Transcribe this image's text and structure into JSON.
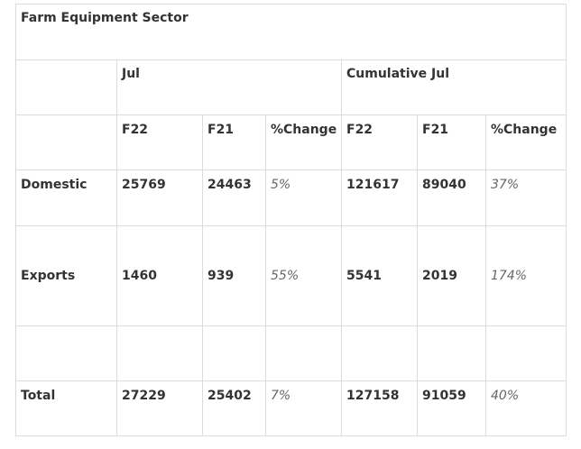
{
  "title": "Farm Equipment Sector",
  "periods": [
    "Jul",
    "Cumulative Jul"
  ],
  "columns": [
    "F22",
    "F21",
    "%Change",
    "F22",
    "F21",
    "%Change"
  ],
  "rows": [
    {
      "label": "Domestic",
      "values": [
        "25769",
        "24463",
        "5%",
        "121617",
        "89040",
        "37%"
      ]
    },
    {
      "label": "Exports",
      "values": [
        "1460",
        "939",
        "55%",
        "5541",
        "2019",
        "174%"
      ]
    },
    {
      "label": "",
      "values": [
        "",
        "",
        "",
        "",
        "",
        ""
      ]
    },
    {
      "label": "Total",
      "values": [
        "27229",
        "25402",
        "7%",
        "127158",
        "91059",
        "40%"
      ]
    }
  ]
}
